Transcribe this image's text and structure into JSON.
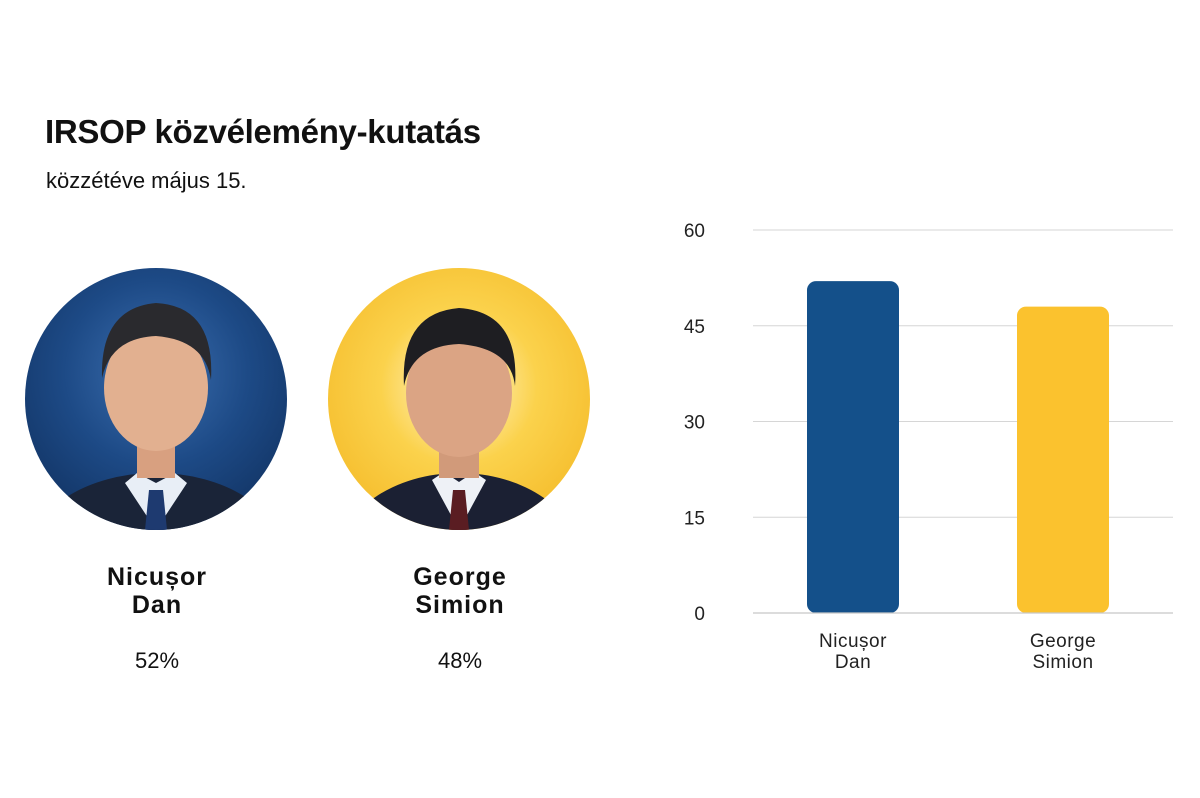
{
  "title": "IRSOP közvélemény-kutatás",
  "subtitle": "közzétéve május 15.",
  "candidates": [
    {
      "name_line1": "Nicușor",
      "name_line2": "Dan",
      "percent_label": "52%",
      "photo": "portrait-nicusor-dan",
      "color": "#14508a"
    },
    {
      "name_line1": "George",
      "name_line2": "Simion",
      "percent_label": "48%",
      "photo": "portrait-george-simion",
      "color": "#fbc22e"
    }
  ],
  "chart_data": {
    "type": "bar",
    "categories": [
      [
        "Nicușor",
        "Dan"
      ],
      [
        "George",
        "Simion"
      ]
    ],
    "values": [
      52,
      48
    ],
    "colors": [
      "#14508a",
      "#fbc22e"
    ],
    "ylim": [
      0,
      60
    ],
    "yticks": [
      0,
      15,
      30,
      45,
      60
    ],
    "grid": true,
    "legend": "none"
  }
}
